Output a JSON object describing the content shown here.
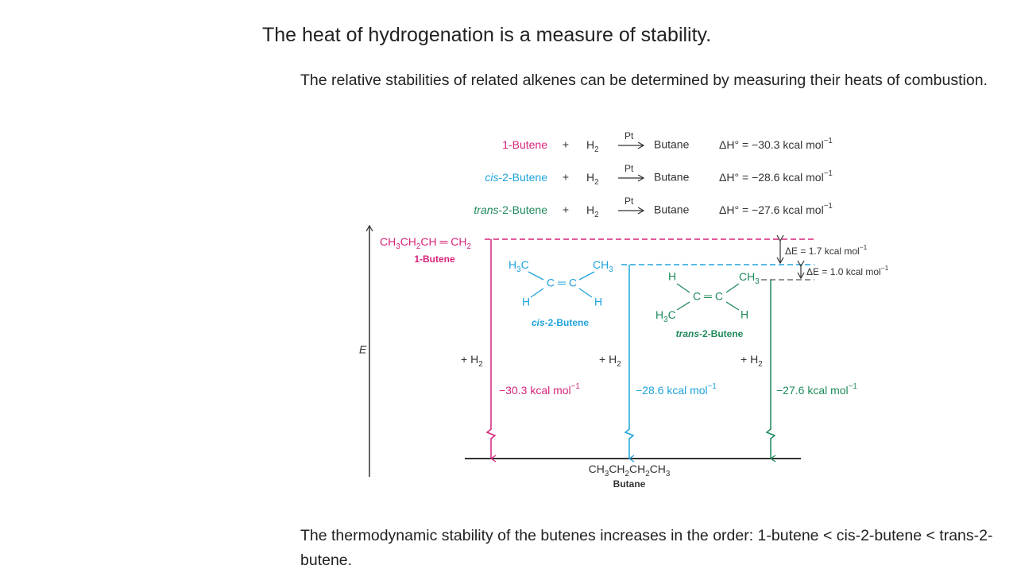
{
  "title": "The heat of hydrogenation is a measure of stability.",
  "intro": "The relative stabilities of related alkenes can be determined by measuring their heats of combustion.",
  "reactions": [
    {
      "reactant": "1-Butene",
      "plus": "+",
      "reagent": "H2",
      "catalyst": "Pt",
      "product": "Butane",
      "enthalpy": "ΔH° = −30.3 kcal mol−1"
    },
    {
      "reactant": "cis-2-Butene",
      "plus": "+",
      "reagent": "H2",
      "catalyst": "Pt",
      "product": "Butane",
      "enthalpy": "ΔH° = −28.6 kcal mol−1"
    },
    {
      "reactant": "trans-2-Butene",
      "plus": "+",
      "reagent": "H2",
      "catalyst": "Pt",
      "product": "Butane",
      "enthalpy": "ΔH° = −27.6 kcal mol−1"
    }
  ],
  "diagram": {
    "axis_label": "E",
    "butene1": {
      "formula": "CH3CH2CH ═ CH2",
      "name": "1-Butene",
      "added": "+ H2",
      "energy": "−30.3 kcal mol−1"
    },
    "cis": {
      "top_left": "H3C",
      "top_right": "CH3",
      "center": "C ═ C",
      "bottom_left": "H",
      "bottom_right": "H",
      "name": "cis-2-Butene",
      "added": "+ H2",
      "energy": "−28.6 kcal mol−1"
    },
    "trans": {
      "top_left": "H",
      "top_right": "CH3",
      "center": "C ═ C",
      "bottom_left": "H3C",
      "bottom_right": "H",
      "name": "trans-2-Butene",
      "added": "+ H2",
      "energy": "−27.6 kcal mol−1"
    },
    "delta_upper": "ΔE = 1.7 kcal mol−1",
    "delta_lower": "ΔE = 1.0 kcal mol−1",
    "product": {
      "formula": "CH3CH2CH2CH3",
      "name": "Butane"
    }
  },
  "conclusion": "The thermodynamic stability of the butenes increases in the order: 1-butene < cis-2-butene < trans-2-butene."
}
